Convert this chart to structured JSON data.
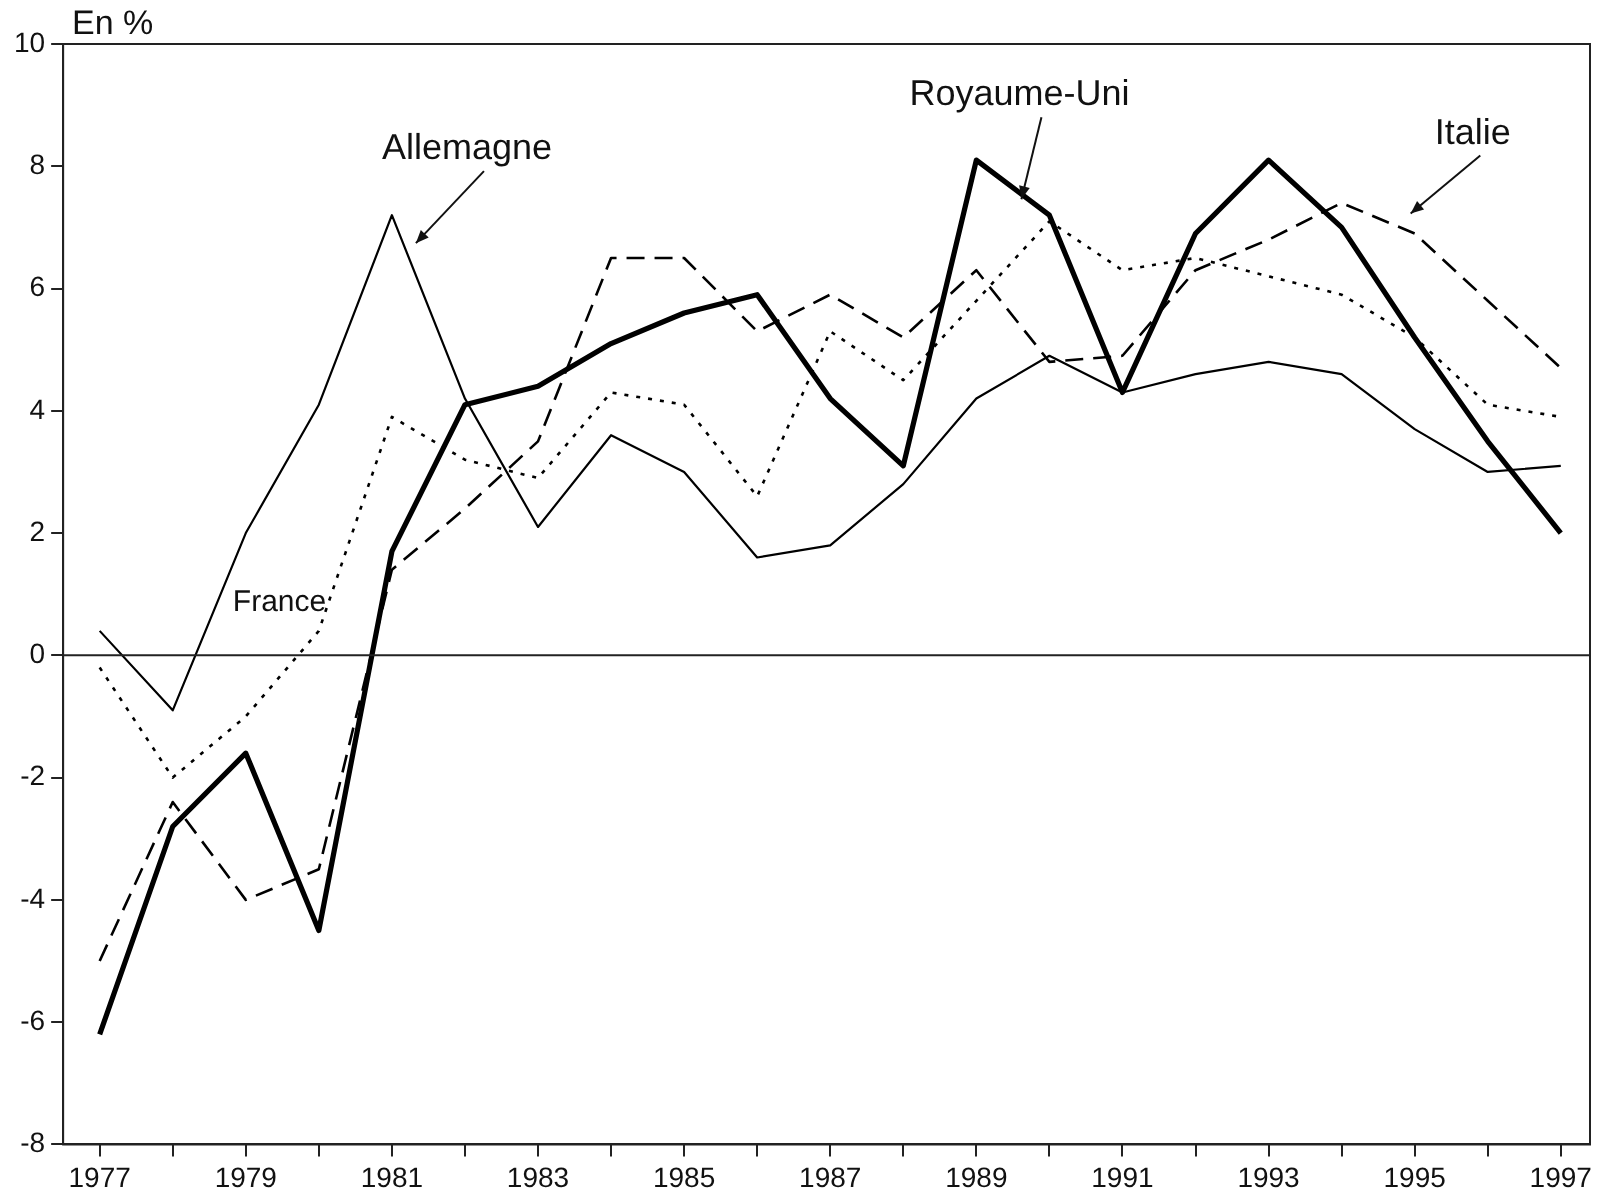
{
  "chart_data": {
    "type": "line",
    "ylabel": "En %",
    "x": [
      1977,
      1978,
      1979,
      1980,
      1981,
      1982,
      1983,
      1984,
      1985,
      1986,
      1987,
      1988,
      1989,
      1990,
      1991,
      1992,
      1993,
      1994,
      1995,
      1996,
      1997
    ],
    "series": [
      {
        "name": "Allemagne",
        "color": "#000000",
        "line_style": "solid",
        "values": [
          0.4,
          -0.9,
          2.0,
          4.1,
          7.2,
          4.2,
          2.1,
          3.6,
          3.0,
          1.6,
          1.8,
          2.8,
          4.2,
          4.9,
          4.3,
          4.6,
          4.8,
          4.6,
          3.7,
          3.0,
          3.1
        ]
      },
      {
        "name": "France",
        "color": "#000000",
        "line_style": "dotted",
        "values": [
          -0.2,
          -2.0,
          -1.0,
          0.4,
          3.9,
          3.2,
          2.9,
          4.3,
          4.1,
          2.6,
          5.3,
          4.5,
          5.8,
          7.1,
          6.3,
          6.5,
          6.2,
          5.9,
          5.2,
          4.1,
          3.9
        ]
      },
      {
        "name": "Royaume-Uni",
        "color": "#000000",
        "line_style": "solid",
        "values": [
          -6.2,
          -2.8,
          -1.6,
          -4.5,
          1.7,
          4.1,
          4.4,
          5.1,
          5.6,
          5.9,
          4.2,
          3.1,
          8.1,
          7.2,
          4.3,
          6.9,
          8.1,
          7.0,
          5.2,
          3.5,
          2.0
        ]
      },
      {
        "name": "Italie",
        "color": "#000000",
        "line_style": "dashed",
        "values": [
          -5.0,
          -2.4,
          -4.0,
          -3.5,
          1.4,
          2.4,
          3.5,
          6.5,
          6.5,
          5.3,
          5.9,
          5.2,
          6.3,
          4.8,
          4.9,
          6.3,
          6.8,
          7.4,
          6.9,
          5.8,
          4.7
        ]
      }
    ],
    "xlim": [
      1976.5,
      1997.4
    ],
    "xticks": [
      1977,
      {
        "value": 1978,
        "label": null
      },
      1979,
      {
        "value": 1980,
        "label": null
      },
      1981,
      {
        "value": 1982,
        "label": null
      },
      1983,
      {
        "value": 1984,
        "label": null
      },
      1985,
      {
        "value": 1986,
        "label": null
      },
      1987,
      {
        "value": 1988,
        "label": null
      },
      1989,
      {
        "value": 1990,
        "label": null
      },
      1991,
      {
        "value": 1992,
        "label": null
      },
      1993,
      {
        "value": 1994,
        "label": null
      },
      1995,
      {
        "value": 1996,
        "label": null
      },
      1997
    ],
    "ylim": [
      -8,
      10
    ],
    "yticks": [
      -8,
      -6,
      -4,
      -2,
      0,
      2,
      4,
      6,
      8,
      10
    ],
    "ref_lines": [
      {
        "axis": "y",
        "value": 0
      }
    ],
    "grid": false,
    "legend": false,
    "marker": "none"
  }
}
